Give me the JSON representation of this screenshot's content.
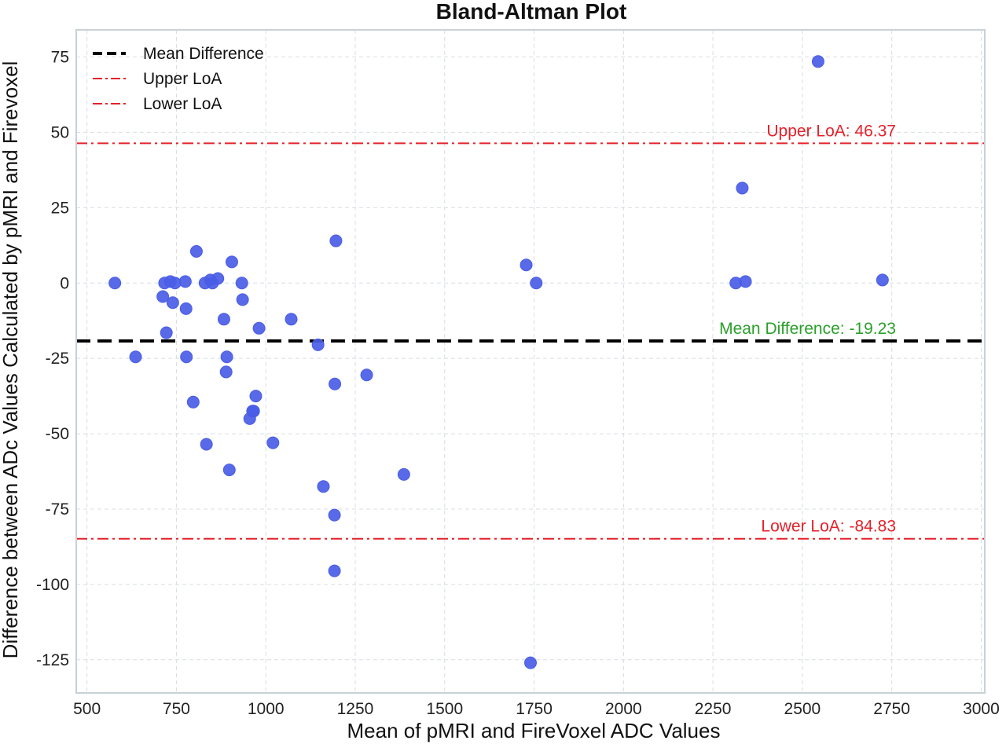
{
  "chart_data": {
    "type": "scatter",
    "title": "Bland-Altman Plot",
    "xlabel": "Mean of pMRI and FireVoxel ADC Values",
    "ylabel": "Difference between ADc Values Calculated by pMRI and Firevoxel",
    "xlim": [
      470,
      3010
    ],
    "ylim": [
      -136,
      84
    ],
    "xticks": [
      500,
      750,
      1000,
      1250,
      1500,
      1750,
      2000,
      2250,
      2500,
      2750,
      3000
    ],
    "yticks": [
      75,
      50,
      25,
      0,
      -25,
      -50,
      -75,
      -100,
      -125
    ],
    "grid": true,
    "legend_position": "top-left",
    "point_color": "#4a5de6",
    "points": [
      [
        578,
        0
      ],
      [
        636,
        -24.5
      ],
      [
        712,
        -4.5
      ],
      [
        717,
        0
      ],
      [
        722,
        -16.5
      ],
      [
        733,
        0.5
      ],
      [
        740,
        -6.5
      ],
      [
        746,
        0
      ],
      [
        775,
        0.5
      ],
      [
        777,
        -8.5
      ],
      [
        778,
        -24.5
      ],
      [
        797,
        -39.5
      ],
      [
        806,
        10.5
      ],
      [
        830,
        0
      ],
      [
        834,
        -53.5
      ],
      [
        845,
        1
      ],
      [
        851,
        0
      ],
      [
        866,
        1.5
      ],
      [
        883,
        -12
      ],
      [
        889,
        -29.5
      ],
      [
        891,
        -24.5
      ],
      [
        898,
        -62
      ],
      [
        905,
        7
      ],
      [
        933,
        0
      ],
      [
        935,
        -5.5
      ],
      [
        955,
        -45
      ],
      [
        963,
        -42.5
      ],
      [
        966,
        -42.5
      ],
      [
        972,
        -37.5
      ],
      [
        981,
        -15
      ],
      [
        1020,
        -53
      ],
      [
        1071,
        -12
      ],
      [
        1146,
        -20.5
      ],
      [
        1161,
        -67.5
      ],
      [
        1192,
        -77
      ],
      [
        1192,
        -95.5
      ],
      [
        1193,
        -33.5
      ],
      [
        1196,
        14
      ],
      [
        1282,
        -30.5
      ],
      [
        1386,
        -63.5
      ],
      [
        1728,
        6
      ],
      [
        1740,
        -126
      ],
      [
        1756,
        0
      ],
      [
        2314,
        0
      ],
      [
        2332,
        31.5
      ],
      [
        2341,
        0.5
      ],
      [
        2544,
        73.5
      ],
      [
        2724,
        1
      ]
    ],
    "lines": [
      {
        "name": "Mean Difference",
        "value": -19.23,
        "color": "#000000",
        "style": "dashed"
      },
      {
        "name": "Upper LoA",
        "value": 46.37,
        "color": "#e5212a",
        "style": "dashdot"
      },
      {
        "name": "Lower LoA",
        "value": -84.83,
        "color": "#e5212a",
        "style": "dashdot"
      }
    ],
    "annotations": [
      {
        "text": "Upper LoA: 46.37",
        "color": "#e5212a",
        "y": 46.37
      },
      {
        "text": "Mean Difference: -19.23",
        "color": "#2aa02a",
        "y": -19.23
      },
      {
        "text": "Lower LoA: -84.83",
        "color": "#e5212a",
        "y": -84.83
      }
    ]
  }
}
